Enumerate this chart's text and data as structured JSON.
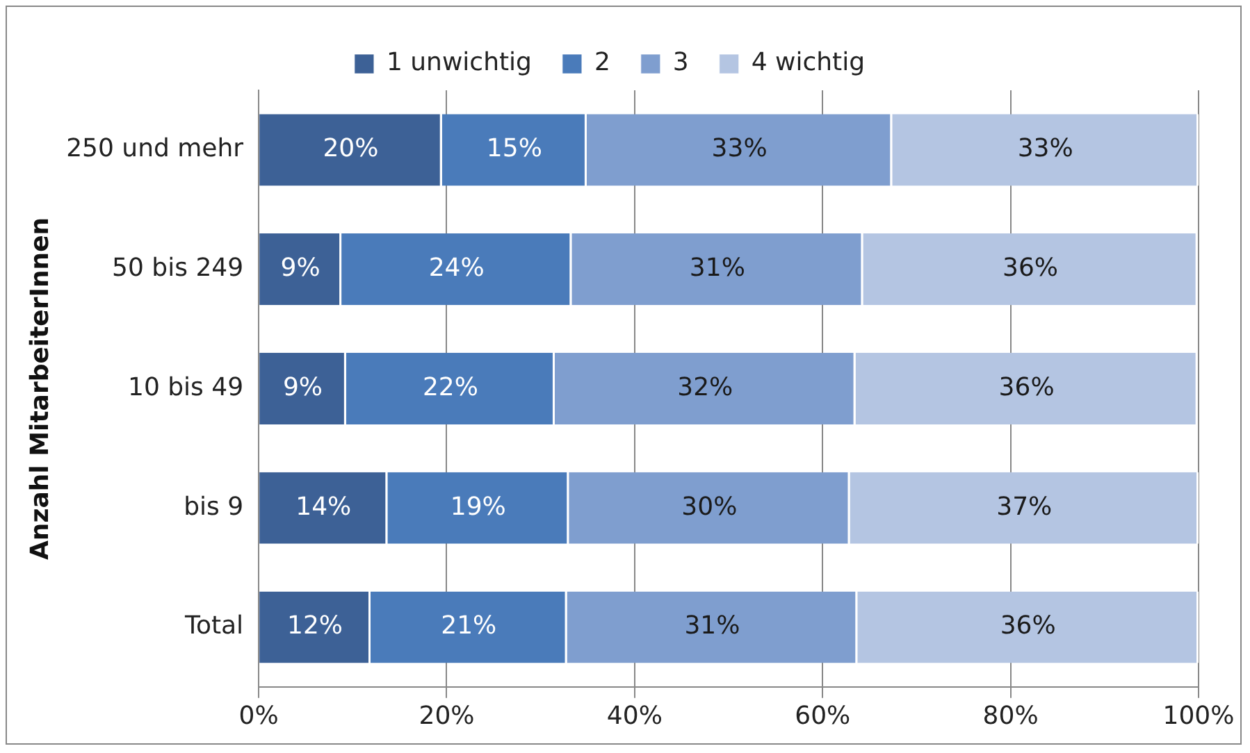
{
  "chart_data": {
    "type": "bar",
    "orientation": "horizontal",
    "stacked": true,
    "ylabel": "Anzahl MitarbeiterInnen",
    "categories": [
      "250 und mehr",
      "50 bis 249",
      "10 bis 49",
      "bis 9",
      "Total"
    ],
    "series": [
      {
        "name": "1 unwichtig",
        "color": "#3d6196",
        "values": [
          19.5,
          8.8,
          9.3,
          13.7,
          11.9
        ],
        "value_labels": [
          "20%",
          "9%",
          "9%",
          "14%",
          "12%"
        ]
      },
      {
        "name": "2",
        "color": "#4a7bba",
        "values": [
          15.4,
          24.5,
          22.2,
          19.3,
          20.9
        ],
        "value_labels": [
          "15%",
          "24%",
          "22%",
          "19%",
          "21%"
        ]
      },
      {
        "name": "3",
        "color": "#7f9ecf",
        "values": [
          32.5,
          31.0,
          32.0,
          29.9,
          30.9
        ],
        "value_labels": [
          "33%",
          "31%",
          "32%",
          "30%",
          "31%"
        ]
      },
      {
        "name": "4 wichtig",
        "color": "#b4c5e2",
        "values": [
          32.6,
          35.6,
          36.4,
          37.1,
          36.3
        ],
        "value_labels": [
          "33%",
          "36%",
          "36%",
          "37%",
          "36%"
        ]
      }
    ],
    "xlim": [
      0,
      100
    ],
    "xticks": [
      {
        "value": 0,
        "label": "0%"
      },
      {
        "value": 20,
        "label": "20%"
      },
      {
        "value": 40,
        "label": "40%"
      },
      {
        "value": 60,
        "label": "60%"
      },
      {
        "value": 80,
        "label": "80%"
      },
      {
        "value": 100,
        "label": "100%"
      }
    ],
    "grid": "x",
    "legend": "top"
  }
}
